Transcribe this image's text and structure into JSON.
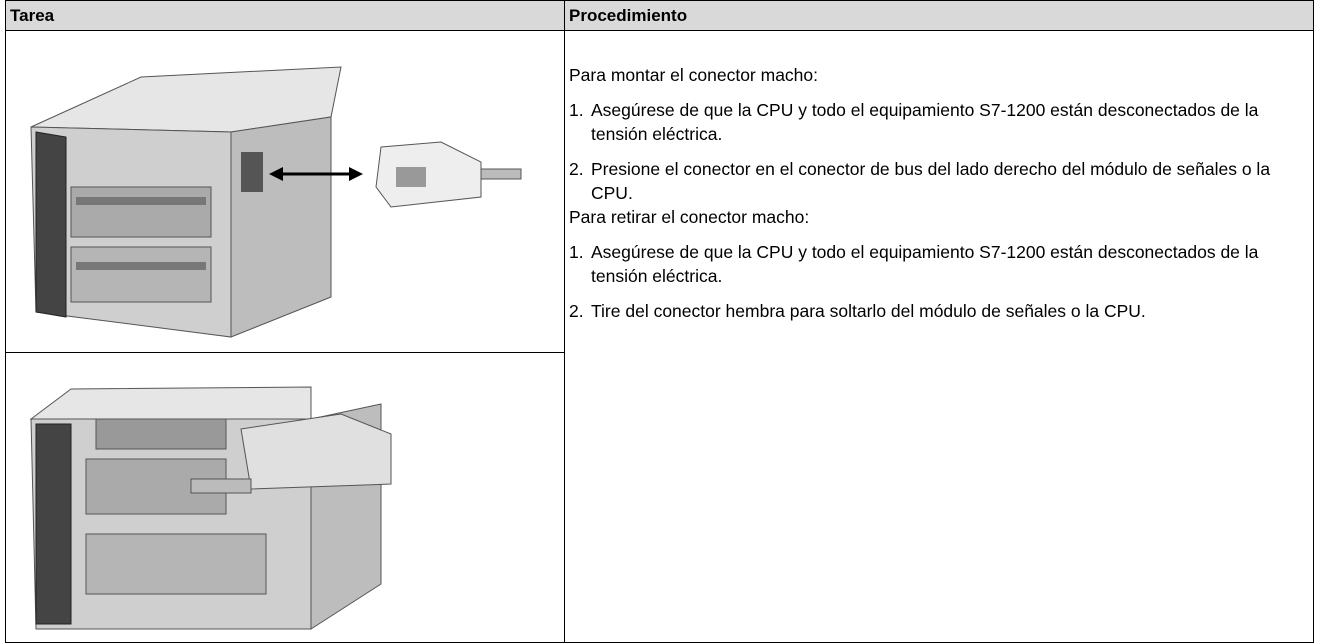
{
  "table": {
    "header": [
      "Tarea",
      "Procedimiento"
    ],
    "procedure": {
      "mount_title": "Para montar el conector macho:",
      "mount_steps": [
        {
          "number": "1.",
          "text": "Asegúrese de que la CPU y todo el equipamiento S7-1200 están desconectados de la tensión eléctrica."
        },
        {
          "number": "2.",
          "text": "Presione el conector en el conector de bus del lado derecho del módulo de señales o la CPU."
        }
      ],
      "remove_title": "Para retirar el conector macho:",
      "remove_steps": [
        {
          "number": "1.",
          "text": "Asegúrese de que la CPU y todo el equipamiento S7-1200 están desconectados de la tensión eléctrica."
        },
        {
          "number": "2.",
          "text": "Tire del conector hembra para soltarlo del módulo de señales o la CPU."
        }
      ]
    }
  }
}
